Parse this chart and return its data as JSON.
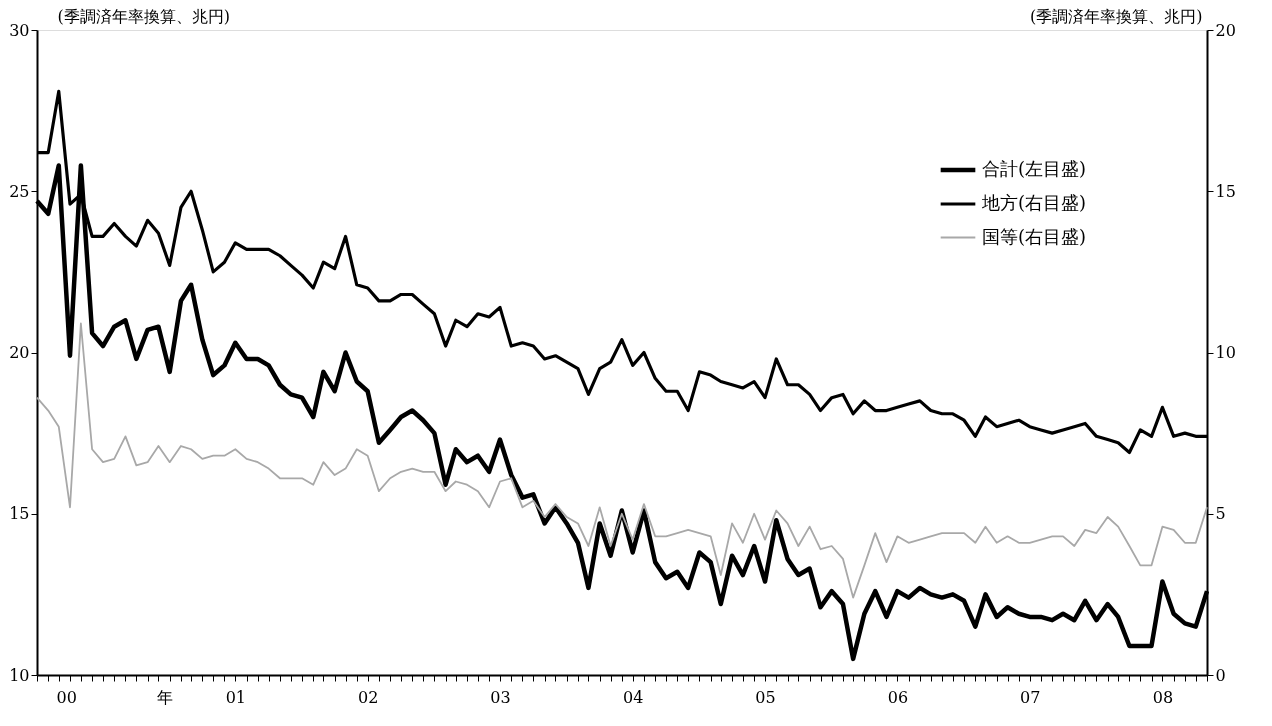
{
  "chart_data": {
    "type": "line",
    "ylabel": "(季調済年率換算、兆円)",
    "y2label": "(季調済年率換算、兆円)",
    "x": [
      "2000-01",
      "2000-02",
      "2000-03",
      "2000-04",
      "2000-05",
      "2000-06",
      "2000-07",
      "2000-08",
      "2000-09",
      "2000-10",
      "2000-11",
      "2000-12",
      "2001-01",
      "2001-02",
      "2001-03",
      "2001-04",
      "2001-05",
      "2001-06",
      "2001-07",
      "2001-08",
      "2001-09",
      "2001-10",
      "2001-11",
      "2001-12",
      "2002-01",
      "2002-02",
      "2002-03",
      "2002-04",
      "2002-05",
      "2002-06",
      "2002-07",
      "2002-08",
      "2002-09",
      "2002-10",
      "2002-11",
      "2002-12",
      "2003-01",
      "2003-02",
      "2003-03",
      "2003-04",
      "2003-05",
      "2003-06",
      "2003-07",
      "2003-08",
      "2003-09",
      "2003-10",
      "2003-11",
      "2003-12",
      "2004-01",
      "2004-02",
      "2004-03",
      "2004-04",
      "2004-05",
      "2004-06",
      "2004-07",
      "2004-08",
      "2004-09",
      "2004-10",
      "2004-11",
      "2004-12",
      "2005-01",
      "2005-02",
      "2005-03",
      "2005-04",
      "2005-05",
      "2005-06",
      "2005-07",
      "2005-08",
      "2005-09",
      "2005-10",
      "2005-11",
      "2005-12",
      "2006-01",
      "2006-02",
      "2006-03",
      "2006-04",
      "2006-05",
      "2006-06",
      "2006-07",
      "2006-08",
      "2006-09",
      "2006-10",
      "2006-11",
      "2006-12",
      "2007-01",
      "2007-02",
      "2007-03",
      "2007-04",
      "2007-05",
      "2007-06",
      "2007-07",
      "2007-08",
      "2007-09",
      "2007-10",
      "2007-11",
      "2007-12",
      "2008-01",
      "2008-02",
      "2008-03",
      "2008-04",
      "2008-05",
      "2008-06",
      "2008-07",
      "2008-08",
      "2008-09",
      "2008-10",
      "2008-11"
    ],
    "series": [
      {
        "name": "合計(左目盛)",
        "color": "#000000",
        "axis": "y",
        "values": [
          24.7,
          24.3,
          25.8,
          19.9,
          25.8,
          20.6,
          20.2,
          20.8,
          21.0,
          19.8,
          20.7,
          20.8,
          19.4,
          21.6,
          22.1,
          20.4,
          19.3,
          19.6,
          20.3,
          19.8,
          19.8,
          19.6,
          19.0,
          18.7,
          18.6,
          18.0,
          19.4,
          18.8,
          20.0,
          19.1,
          18.8,
          17.2,
          17.6,
          18.0,
          18.2,
          17.9,
          17.5,
          15.9,
          17.0,
          16.6,
          16.8,
          16.3,
          17.3,
          16.2,
          15.5,
          15.6,
          14.7,
          15.2,
          14.7,
          14.1,
          12.7,
          14.7,
          13.7,
          15.1,
          13.8,
          15.1,
          13.5,
          13.0,
          13.2,
          12.7,
          13.8,
          13.5,
          12.2,
          13.7,
          13.1,
          14.0,
          12.9,
          14.8,
          13.6,
          13.1,
          13.3,
          12.1,
          12.6,
          12.2,
          10.5,
          11.9,
          12.6,
          11.8,
          12.6,
          12.4,
          12.7,
          12.5,
          12.4,
          12.5,
          12.3,
          11.5,
          12.5,
          11.8,
          12.1,
          11.9,
          11.8,
          11.8,
          11.7,
          11.9,
          11.7,
          12.3,
          11.7,
          12.2,
          11.8,
          10.9,
          10.9,
          10.9,
          12.9,
          11.9,
          11.6,
          11.5,
          12.6
        ]
      },
      {
        "name": "地方(右目盛)",
        "color": "#000000",
        "axis": "y2",
        "values": [
          16.2,
          16.2,
          18.1,
          14.6,
          14.9,
          13.6,
          13.6,
          14.0,
          13.6,
          13.3,
          14.1,
          13.7,
          12.7,
          14.5,
          15.0,
          13.8,
          12.5,
          12.8,
          13.4,
          13.2,
          13.2,
          13.2,
          13.0,
          12.7,
          12.4,
          12.0,
          12.8,
          12.6,
          13.6,
          12.1,
          12.0,
          11.6,
          11.6,
          11.8,
          11.8,
          11.5,
          11.2,
          10.2,
          11.0,
          10.8,
          11.2,
          11.1,
          11.4,
          10.2,
          10.3,
          10.2,
          9.8,
          9.9,
          9.7,
          9.5,
          8.7,
          9.5,
          9.7,
          10.4,
          9.6,
          10.0,
          9.2,
          8.8,
          8.8,
          8.2,
          9.4,
          9.3,
          9.1,
          9.0,
          8.9,
          9.1,
          8.6,
          9.8,
          9.0,
          9.0,
          8.7,
          8.2,
          8.6,
          8.7,
          8.1,
          8.5,
          8.2,
          8.2,
          8.3,
          8.4,
          8.5,
          8.2,
          8.1,
          8.1,
          7.9,
          7.4,
          8.0,
          7.7,
          7.8,
          7.9,
          7.7,
          7.6,
          7.5,
          7.6,
          7.7,
          7.8,
          7.4,
          7.3,
          7.2,
          6.9,
          7.6,
          7.4,
          8.3,
          7.4,
          7.5,
          7.4,
          7.4
        ]
      },
      {
        "name": "国等(右目盛)",
        "color": "#a8a8a8",
        "axis": "y2",
        "values": [
          8.6,
          8.2,
          7.7,
          5.2,
          10.9,
          7.0,
          6.6,
          6.7,
          7.4,
          6.5,
          6.6,
          7.1,
          6.6,
          7.1,
          7.0,
          6.7,
          6.8,
          6.8,
          7.0,
          6.7,
          6.6,
          6.4,
          6.1,
          6.1,
          6.1,
          5.9,
          6.6,
          6.2,
          6.4,
          7.0,
          6.8,
          5.7,
          6.1,
          6.3,
          6.4,
          6.3,
          6.3,
          5.7,
          6.0,
          5.9,
          5.7,
          5.2,
          6.0,
          6.1,
          5.2,
          5.4,
          4.9,
          5.3,
          4.9,
          4.7,
          4.0,
          5.2,
          4.0,
          5.0,
          4.2,
          5.3,
          4.3,
          4.3,
          4.4,
          4.5,
          4.4,
          4.3,
          3.1,
          4.7,
          4.1,
          5.0,
          4.2,
          5.1,
          4.7,
          4.0,
          4.6,
          3.9,
          4.0,
          3.6,
          2.4,
          3.4,
          4.4,
          3.5,
          4.3,
          4.1,
          4.2,
          4.3,
          4.4,
          4.4,
          4.4,
          4.1,
          4.6,
          4.1,
          4.3,
          4.1,
          4.1,
          4.2,
          4.3,
          4.3,
          4.0,
          4.5,
          4.4,
          4.9,
          4.6,
          4.0,
          3.4,
          3.4,
          4.6,
          4.5,
          4.1,
          4.1,
          5.2
        ]
      }
    ],
    "xlim": [
      "2000-01",
      "2008-11"
    ],
    "xticks": [
      {
        "value": "2000-01",
        "label": null
      },
      {
        "value": "2000-02",
        "label": null
      },
      {
        "value": "2000-03",
        "label": null
      },
      {
        "value": "2000-04",
        "label": null
      },
      {
        "value": "2000-05",
        "label": null
      },
      {
        "value": "2000-06",
        "label": null
      },
      {
        "value": "2000-07",
        "label": null
      },
      {
        "value": "2000-08",
        "label": "00　　　　　年"
      },
      {
        "value": "2000-09",
        "label": null
      },
      {
        "value": "2000-10",
        "label": null
      },
      {
        "value": "2000-11",
        "label": null
      },
      {
        "value": "2000-12",
        "label": null
      },
      {
        "value": "2001-01",
        "label": null
      },
      {
        "value": "2001-02",
        "label": null
      },
      {
        "value": "2001-03",
        "label": null
      },
      {
        "value": "2001-04",
        "label": null
      },
      {
        "value": "2001-05",
        "label": null
      },
      {
        "value": "2001-06",
        "label": null
      },
      {
        "value": "2001-07",
        "label": "01"
      },
      {
        "value": "2001-08",
        "label": null
      },
      {
        "value": "2001-09",
        "label": null
      },
      {
        "value": "2001-10",
        "label": null
      },
      {
        "value": "2001-11",
        "label": null
      },
      {
        "value": "2001-12",
        "label": null
      },
      {
        "value": "2002-01",
        "label": null
      },
      {
        "value": "2002-02",
        "label": null
      },
      {
        "value": "2002-03",
        "label": null
      },
      {
        "value": "2002-04",
        "label": null
      },
      {
        "value": "2002-05",
        "label": null
      },
      {
        "value": "2002-06",
        "label": null
      },
      {
        "value": "2002-07",
        "label": "02"
      },
      {
        "value": "2002-08",
        "label": null
      },
      {
        "value": "2002-09",
        "label": null
      },
      {
        "value": "2002-10",
        "label": null
      },
      {
        "value": "2002-11",
        "label": null
      },
      {
        "value": "2002-12",
        "label": null
      },
      {
        "value": "2003-01",
        "label": null
      },
      {
        "value": "2003-02",
        "label": null
      },
      {
        "value": "2003-03",
        "label": null
      },
      {
        "value": "2003-04",
        "label": null
      },
      {
        "value": "2003-05",
        "label": null
      },
      {
        "value": "2003-06",
        "label": null
      },
      {
        "value": "2003-07",
        "label": "03"
      },
      {
        "value": "2003-08",
        "label": null
      },
      {
        "value": "2003-09",
        "label": null
      },
      {
        "value": "2003-10",
        "label": null
      },
      {
        "value": "2003-11",
        "label": null
      },
      {
        "value": "2003-12",
        "label": null
      },
      {
        "value": "2004-01",
        "label": null
      },
      {
        "value": "2004-02",
        "label": null
      },
      {
        "value": "2004-03",
        "label": null
      },
      {
        "value": "2004-04",
        "label": null
      },
      {
        "value": "2004-05",
        "label": null
      },
      {
        "value": "2004-06",
        "label": null
      },
      {
        "value": "2004-07",
        "label": "04"
      },
      {
        "value": "2004-08",
        "label": null
      },
      {
        "value": "2004-09",
        "label": null
      },
      {
        "value": "2004-10",
        "label": null
      },
      {
        "value": "2004-11",
        "label": null
      },
      {
        "value": "2004-12",
        "label": null
      },
      {
        "value": "2005-01",
        "label": null
      },
      {
        "value": "2005-02",
        "label": null
      },
      {
        "value": "2005-03",
        "label": null
      },
      {
        "value": "2005-04",
        "label": null
      },
      {
        "value": "2005-05",
        "label": null
      },
      {
        "value": "2005-06",
        "label": null
      },
      {
        "value": "2005-07",
        "label": "05"
      },
      {
        "value": "2005-08",
        "label": null
      },
      {
        "value": "2005-09",
        "label": null
      },
      {
        "value": "2005-10",
        "label": null
      },
      {
        "value": "2005-11",
        "label": null
      },
      {
        "value": "2005-12",
        "label": null
      },
      {
        "value": "2006-01",
        "label": null
      },
      {
        "value": "2006-02",
        "label": null
      },
      {
        "value": "2006-03",
        "label": null
      },
      {
        "value": "2006-04",
        "label": null
      },
      {
        "value": "2006-05",
        "label": null
      },
      {
        "value": "2006-06",
        "label": null
      },
      {
        "value": "2006-07",
        "label": "06"
      },
      {
        "value": "2006-08",
        "label": null
      },
      {
        "value": "2006-09",
        "label": null
      },
      {
        "value": "2006-10",
        "label": null
      },
      {
        "value": "2006-11",
        "label": null
      },
      {
        "value": "2006-12",
        "label": null
      },
      {
        "value": "2007-01",
        "label": null
      },
      {
        "value": "2007-02",
        "label": null
      },
      {
        "value": "2007-03",
        "label": null
      },
      {
        "value": "2007-04",
        "label": null
      },
      {
        "value": "2007-05",
        "label": null
      },
      {
        "value": "2007-06",
        "label": null
      },
      {
        "value": "2007-07",
        "label": "07"
      },
      {
        "value": "2007-08",
        "label": null
      },
      {
        "value": "2007-09",
        "label": null
      },
      {
        "value": "2007-10",
        "label": null
      },
      {
        "value": "2007-11",
        "label": null
      },
      {
        "value": "2007-12",
        "label": null
      },
      {
        "value": "2008-01",
        "label": null
      },
      {
        "value": "2008-02",
        "label": null
      },
      {
        "value": "2008-03",
        "label": null
      },
      {
        "value": "2008-04",
        "label": null
      },
      {
        "value": "2008-05",
        "label": null
      },
      {
        "value": "2008-06",
        "label": null
      },
      {
        "value": "2008-07",
        "label": "08"
      },
      {
        "value": "2008-08",
        "label": null
      },
      {
        "value": "2008-09",
        "label": null
      },
      {
        "value": "2008-10",
        "label": null
      },
      {
        "value": "2008-11",
        "label": null
      }
    ],
    "ylim": [
      10,
      30
    ],
    "yticks": [
      10,
      15,
      20,
      25,
      30
    ],
    "y2lim": [
      0,
      20
    ],
    "y2ticks": [
      0,
      5,
      10,
      15,
      20
    ],
    "grid": false,
    "legend": "top right"
  }
}
